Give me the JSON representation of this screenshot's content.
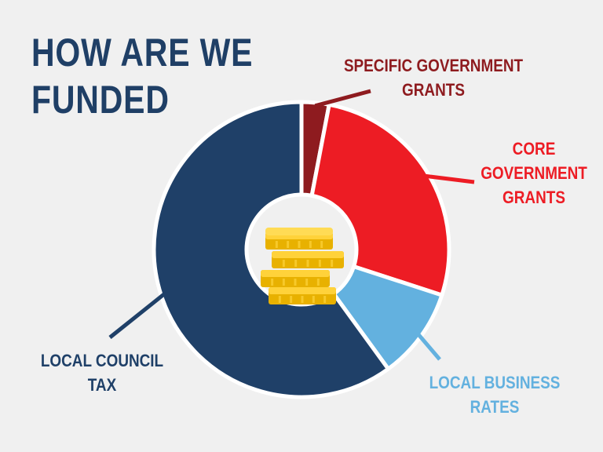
{
  "chart_data": {
    "type": "pie",
    "title_lines": [
      "HOW ARE WE",
      "FUNDED"
    ],
    "slices": [
      {
        "label_lines": [
          "SPECIFIC GOVERNMENT",
          "GRANTS"
        ],
        "value": 3,
        "color": "#8e1b1f"
      },
      {
        "label_lines": [
          "CORE",
          "GOVERNMENT",
          "GRANTS"
        ],
        "value": 27,
        "color": "#ed1c24"
      },
      {
        "label_lines": [
          "LOCAL BUSINESS",
          "RATES"
        ],
        "value": 10,
        "color": "#63b1df"
      },
      {
        "label_lines": [
          "LOCAL COUNCIL",
          "TAX"
        ],
        "value": 60,
        "color": "#1f4068"
      }
    ],
    "center_icon": "coin-stack-icon"
  }
}
